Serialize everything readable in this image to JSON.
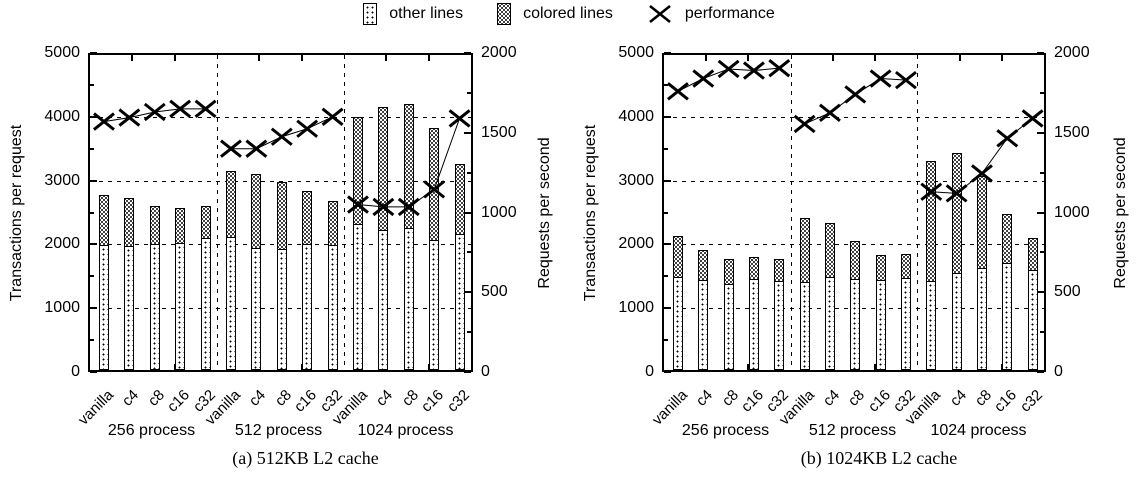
{
  "legend": {
    "items": [
      {
        "label": "other lines",
        "swatch": "sparse-dots-box"
      },
      {
        "label": "colored lines",
        "swatch": "dense-dots-box"
      },
      {
        "label": "performance",
        "swatch": "x-marker"
      }
    ]
  },
  "colors": {
    "foreground": "#000000",
    "background": "#ffffff"
  },
  "chart_data": [
    {
      "type": "bar",
      "title": "(a) 512KB L2 cache",
      "categories": [
        "vanilla",
        "c4",
        "c8",
        "c16",
        "c32"
      ],
      "groups": [
        "256 process",
        "512 process",
        "1024 process"
      ],
      "ylabel_left": "Transactions per request",
      "ylabel_right": "Requests per second",
      "ylim_left": [
        0,
        5000
      ],
      "ylim_right": [
        0,
        2000
      ],
      "yticks_left": [
        0,
        1000,
        2000,
        3000,
        4000,
        5000
      ],
      "yticks_right": [
        0,
        500,
        1000,
        1500,
        2000
      ],
      "grid": true,
      "legend_position": "top-center",
      "series": [
        {
          "name": "other lines",
          "axis": "left",
          "role": "bar-bottom",
          "values": [
            [
              1950,
              1930,
              1970,
              1990,
              2070
            ],
            [
              2080,
              1910,
              1890,
              1970,
              1950
            ],
            [
              2280,
              2190,
              2230,
              2030,
              2120
            ]
          ]
        },
        {
          "name": "colored lines",
          "axis": "left",
          "role": "bar-top",
          "values": [
            [
              790,
              760,
              600,
              560,
              510
            ],
            [
              1050,
              1180,
              1060,
              840,
              700
            ],
            [
              1700,
              1950,
              1970,
              1770,
              1110
            ]
          ]
        },
        {
          "name": "performance",
          "axis": "right",
          "role": "line",
          "values": [
            [
              1570,
              1595,
              1630,
              1650,
              1650
            ],
            [
              1400,
              1400,
              1475,
              1525,
              1600
            ],
            [
              1050,
              1035,
              1035,
              1145,
              1590
            ]
          ]
        }
      ]
    },
    {
      "type": "bar",
      "title": "(b) 1024KB L2 cache",
      "categories": [
        "vanilla",
        "c4",
        "c8",
        "c16",
        "c32"
      ],
      "groups": [
        "256 process",
        "512 process",
        "1024 process"
      ],
      "ylabel_left": "Transactions per request",
      "ylabel_right": "Requests per second",
      "ylim_left": [
        0,
        5000
      ],
      "ylim_right": [
        0,
        2000
      ],
      "yticks_left": [
        0,
        1000,
        2000,
        3000,
        4000,
        5000
      ],
      "yticks_right": [
        0,
        500,
        1000,
        1500,
        2000
      ],
      "grid": true,
      "legend_position": "top-center",
      "series": [
        {
          "name": "other lines",
          "axis": "left",
          "role": "bar-bottom",
          "values": [
            [
              1450,
              1400,
              1330,
              1420,
              1380
            ],
            [
              1370,
              1450,
              1410,
              1395,
              1430
            ],
            [
              1380,
              1500,
              1590,
              1670,
              1550
            ]
          ]
        },
        {
          "name": "colored lines",
          "axis": "left",
          "role": "bar-top",
          "values": [
            [
              650,
              470,
              400,
              350,
              350
            ],
            [
              1020,
              850,
              610,
              395,
              380
            ],
            [
              1910,
              1910,
              1460,
              770,
              500
            ]
          ]
        },
        {
          "name": "performance",
          "axis": "right",
          "role": "line",
          "values": [
            [
              1760,
              1840,
              1900,
              1890,
              1905
            ],
            [
              1555,
              1625,
              1740,
              1840,
              1830
            ],
            [
              1130,
              1120,
              1245,
              1465,
              1590
            ]
          ]
        }
      ]
    }
  ]
}
